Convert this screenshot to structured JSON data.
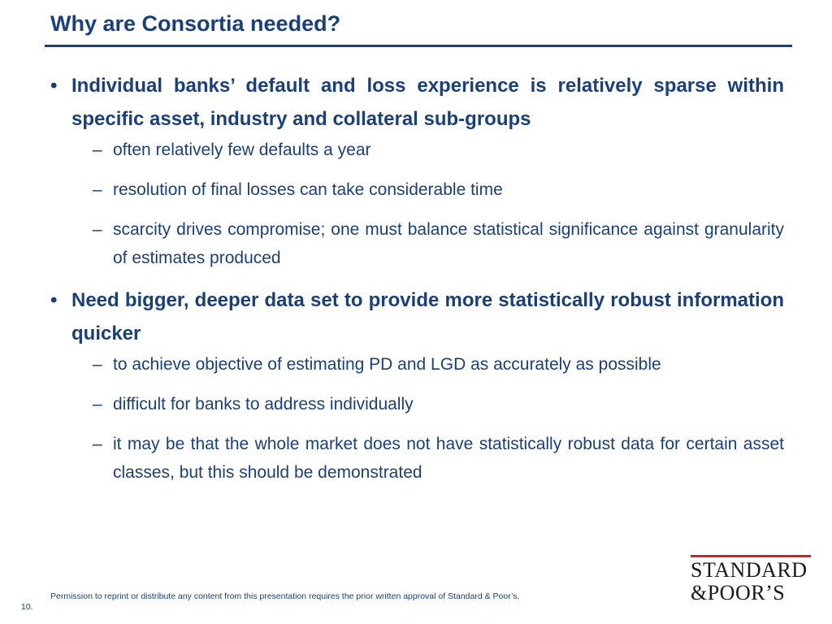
{
  "slide": {
    "title": "Why are Consortia needed?",
    "bullets": [
      {
        "mark": "•",
        "text": "Individual banks’ default and loss experience is relatively sparse within specific asset, industry and collateral sub-groups",
        "subs": [
          "often relatively few defaults a year",
          "resolution of final losses can take considerable time",
          "scarcity drives compromise; one must balance statistical significance against granularity of estimates produced"
        ]
      },
      {
        "mark": "•",
        "text": "Need bigger, deeper data set to provide more statistically robust information quicker",
        "subs": [
          "to achieve objective of estimating PD and LGD as accurately as possible",
          "difficult for banks to address individually",
          "it may be that the whole market does not have statistically robust data for certain asset classes, but this should be demonstrated"
        ]
      }
    ],
    "dash": "–"
  },
  "footer": {
    "note": "Permission to reprint or distribute any content from this presentation requires the prior written approval of Standard & Poor’s.",
    "page_number": "10."
  },
  "logo": {
    "line1": "STANDARD",
    "line2": "&POOR’S",
    "accent_color": "#c0272d"
  },
  "colors": {
    "primary": "#1b4077"
  }
}
